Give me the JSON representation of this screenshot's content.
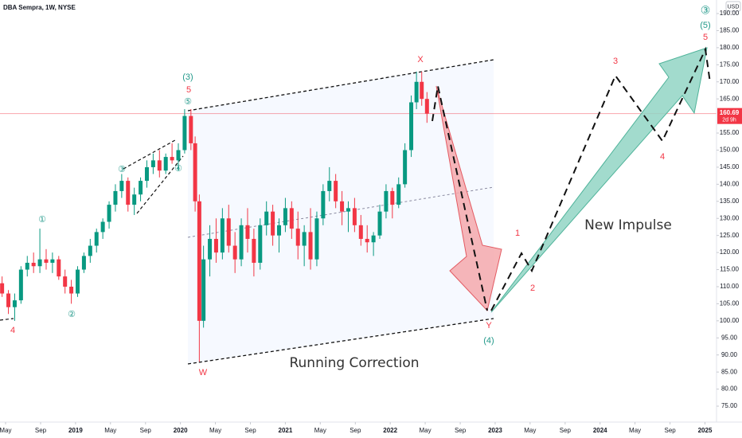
{
  "chart_data": {
    "type": "candlestick",
    "title": "DBA Sempra, 1W, NYSE",
    "y_unit": "USD",
    "last_price": 160.69,
    "countdown": "2d 9h",
    "colors": {
      "up": "#089981",
      "down": "#f23645",
      "last_price": "#f23645"
    },
    "grid": false,
    "xlim": [
      2018.28,
      2025.11
    ],
    "ylim": [
      70.34,
      193.97
    ],
    "xticks": [
      {
        "value": 2018.333,
        "label": "May"
      },
      {
        "value": 2018.667,
        "label": "Sep"
      },
      2019,
      {
        "value": 2019.333,
        "label": "May"
      },
      {
        "value": 2019.667,
        "label": "Sep"
      },
      2020,
      {
        "value": 2020.333,
        "label": "May"
      },
      {
        "value": 2020.667,
        "label": "Sep"
      },
      2021,
      {
        "value": 2021.333,
        "label": "May"
      },
      {
        "value": 2021.667,
        "label": "Sep"
      },
      2022,
      {
        "value": 2022.333,
        "label": "May"
      },
      {
        "value": 2022.667,
        "label": "Sep"
      },
      2023,
      {
        "value": 2023.333,
        "label": "May"
      },
      {
        "value": 2023.667,
        "label": "Sep"
      },
      2024,
      {
        "value": 2024.333,
        "label": "May"
      },
      {
        "value": 2024.667,
        "label": "Sep"
      },
      2025
    ],
    "yticks": [
      {
        "value": 75,
        "label": "75.00"
      },
      {
        "value": 80,
        "label": "80.00"
      },
      {
        "value": 85,
        "label": "85.00"
      },
      {
        "value": 90,
        "label": "90.00"
      },
      {
        "value": 95,
        "label": "95.00"
      },
      {
        "value": 100,
        "label": "100.00"
      },
      {
        "value": 105,
        "label": "105.00"
      },
      {
        "value": 110,
        "label": "110.00"
      },
      {
        "value": 115,
        "label": "115.00"
      },
      {
        "value": 120,
        "label": "120.00"
      },
      {
        "value": 125,
        "label": "125.00"
      },
      {
        "value": 130,
        "label": "130.00"
      },
      {
        "value": 135,
        "label": "135.00"
      },
      {
        "value": 140,
        "label": "140.00"
      },
      {
        "value": 145,
        "label": "145.00"
      },
      {
        "value": 150,
        "label": "150.00"
      },
      {
        "value": 155,
        "label": "155.00"
      },
      {
        "value": 165,
        "label": "165.00"
      },
      {
        "value": 170,
        "label": "170.00"
      },
      {
        "value": 175,
        "label": "175.00"
      },
      {
        "value": 180,
        "label": "180.00"
      },
      {
        "value": 185,
        "label": "185.00"
      },
      {
        "value": 190,
        "label": "190.00"
      }
    ],
    "x": [
      2018.3,
      2018.36,
      2018.42,
      2018.48,
      2018.54,
      2018.6,
      2018.66,
      2018.72,
      2018.78,
      2018.84,
      2018.9,
      2018.96,
      2019.02,
      2019.08,
      2019.14,
      2019.2,
      2019.26,
      2019.32,
      2019.38,
      2019.44,
      2019.5,
      2019.56,
      2019.62,
      2019.68,
      2019.74,
      2019.8,
      2019.86,
      2019.92,
      2019.98,
      2020.04,
      2020.1,
      2020.14,
      2020.18,
      2020.22,
      2020.28,
      2020.34,
      2020.4,
      2020.46,
      2020.52,
      2020.58,
      2020.64,
      2020.7,
      2020.76,
      2020.82,
      2020.88,
      2020.94,
      2021.0,
      2021.06,
      2021.12,
      2021.18,
      2021.24,
      2021.3,
      2021.36,
      2021.42,
      2021.48,
      2021.54,
      2021.6,
      2021.66,
      2021.72,
      2021.78,
      2021.84,
      2021.9,
      2021.96,
      2022.02,
      2022.08,
      2022.14,
      2022.2,
      2022.25,
      2022.3,
      2022.35
    ],
    "open": [
      111,
      108,
      104,
      106,
      115,
      117,
      116,
      118,
      117,
      118,
      113,
      110,
      108,
      115,
      119,
      122,
      126,
      129,
      134,
      138,
      141,
      134,
      137,
      141,
      145,
      147,
      144,
      148,
      147,
      150,
      160,
      152,
      135,
      100,
      118,
      124,
      120,
      130,
      122,
      118,
      128,
      124,
      117,
      128,
      132,
      125,
      128,
      133,
      127,
      122,
      126,
      118,
      130,
      138,
      141,
      135,
      132,
      133,
      128,
      124,
      123,
      125,
      132,
      138,
      134,
      140,
      150,
      164,
      170,
      165
    ],
    "high": [
      113,
      109,
      108,
      116,
      119,
      120,
      127,
      121,
      120,
      119,
      115,
      112,
      116,
      120,
      124,
      127,
      130,
      135,
      140,
      143,
      142,
      139,
      142,
      147,
      149,
      150,
      149,
      152,
      152,
      162,
      162,
      154,
      137,
      122,
      128,
      130,
      133,
      134,
      126,
      130,
      133,
      127,
      130,
      135,
      134,
      130,
      136,
      135,
      132,
      128,
      133,
      132,
      140,
      145,
      143,
      138,
      135,
      136,
      131,
      128,
      126,
      134,
      140,
      139,
      142,
      152,
      166,
      173,
      173,
      167
    ],
    "low": [
      107,
      102,
      100,
      105,
      113,
      114,
      114,
      115,
      114,
      112,
      108,
      105,
      107,
      114,
      117,
      120,
      124,
      127,
      132,
      136,
      132,
      131,
      135,
      139,
      143,
      142,
      143,
      146,
      144,
      149,
      150,
      132,
      88,
      98,
      113,
      117,
      118,
      120,
      114,
      116,
      120,
      113,
      115,
      125,
      122,
      120,
      126,
      124,
      118,
      116,
      115,
      116,
      128,
      135,
      133,
      128,
      126,
      126,
      122,
      120,
      119,
      124,
      130,
      130,
      133,
      139,
      148,
      162,
      163,
      158
    ],
    "close": [
      108,
      104,
      106,
      115,
      117,
      116,
      118,
      117,
      118,
      113,
      110,
      108,
      115,
      119,
      122,
      126,
      129,
      134,
      138,
      141,
      134,
      137,
      141,
      145,
      147,
      144,
      148,
      147,
      150,
      160,
      152,
      135,
      100,
      118,
      124,
      120,
      130,
      122,
      118,
      128,
      124,
      117,
      128,
      132,
      125,
      128,
      133,
      127,
      122,
      126,
      118,
      130,
      138,
      141,
      135,
      132,
      133,
      128,
      124,
      123,
      125,
      132,
      138,
      134,
      140,
      150,
      164,
      170,
      165,
      160.69
    ],
    "annotations": [
      {
        "text": "4"
      },
      {
        "text": "①"
      },
      {
        "text": "②"
      },
      {
        "text": "③"
      },
      {
        "text": "④"
      },
      {
        "text": "⑤"
      },
      {
        "text": "5"
      },
      {
        "text": "(3)"
      },
      {
        "text": "W"
      },
      {
        "text": "X"
      },
      {
        "text": "Y"
      },
      {
        "text": "(4)"
      },
      {
        "text": "1"
      },
      {
        "text": "2"
      },
      {
        "text": "3"
      },
      {
        "text": "4"
      },
      {
        "text": "5"
      },
      {
        "text": "(5)"
      },
      {
        "text": "③"
      },
      {
        "text": "Running Correction"
      },
      {
        "text": "New Impulse"
      }
    ]
  }
}
